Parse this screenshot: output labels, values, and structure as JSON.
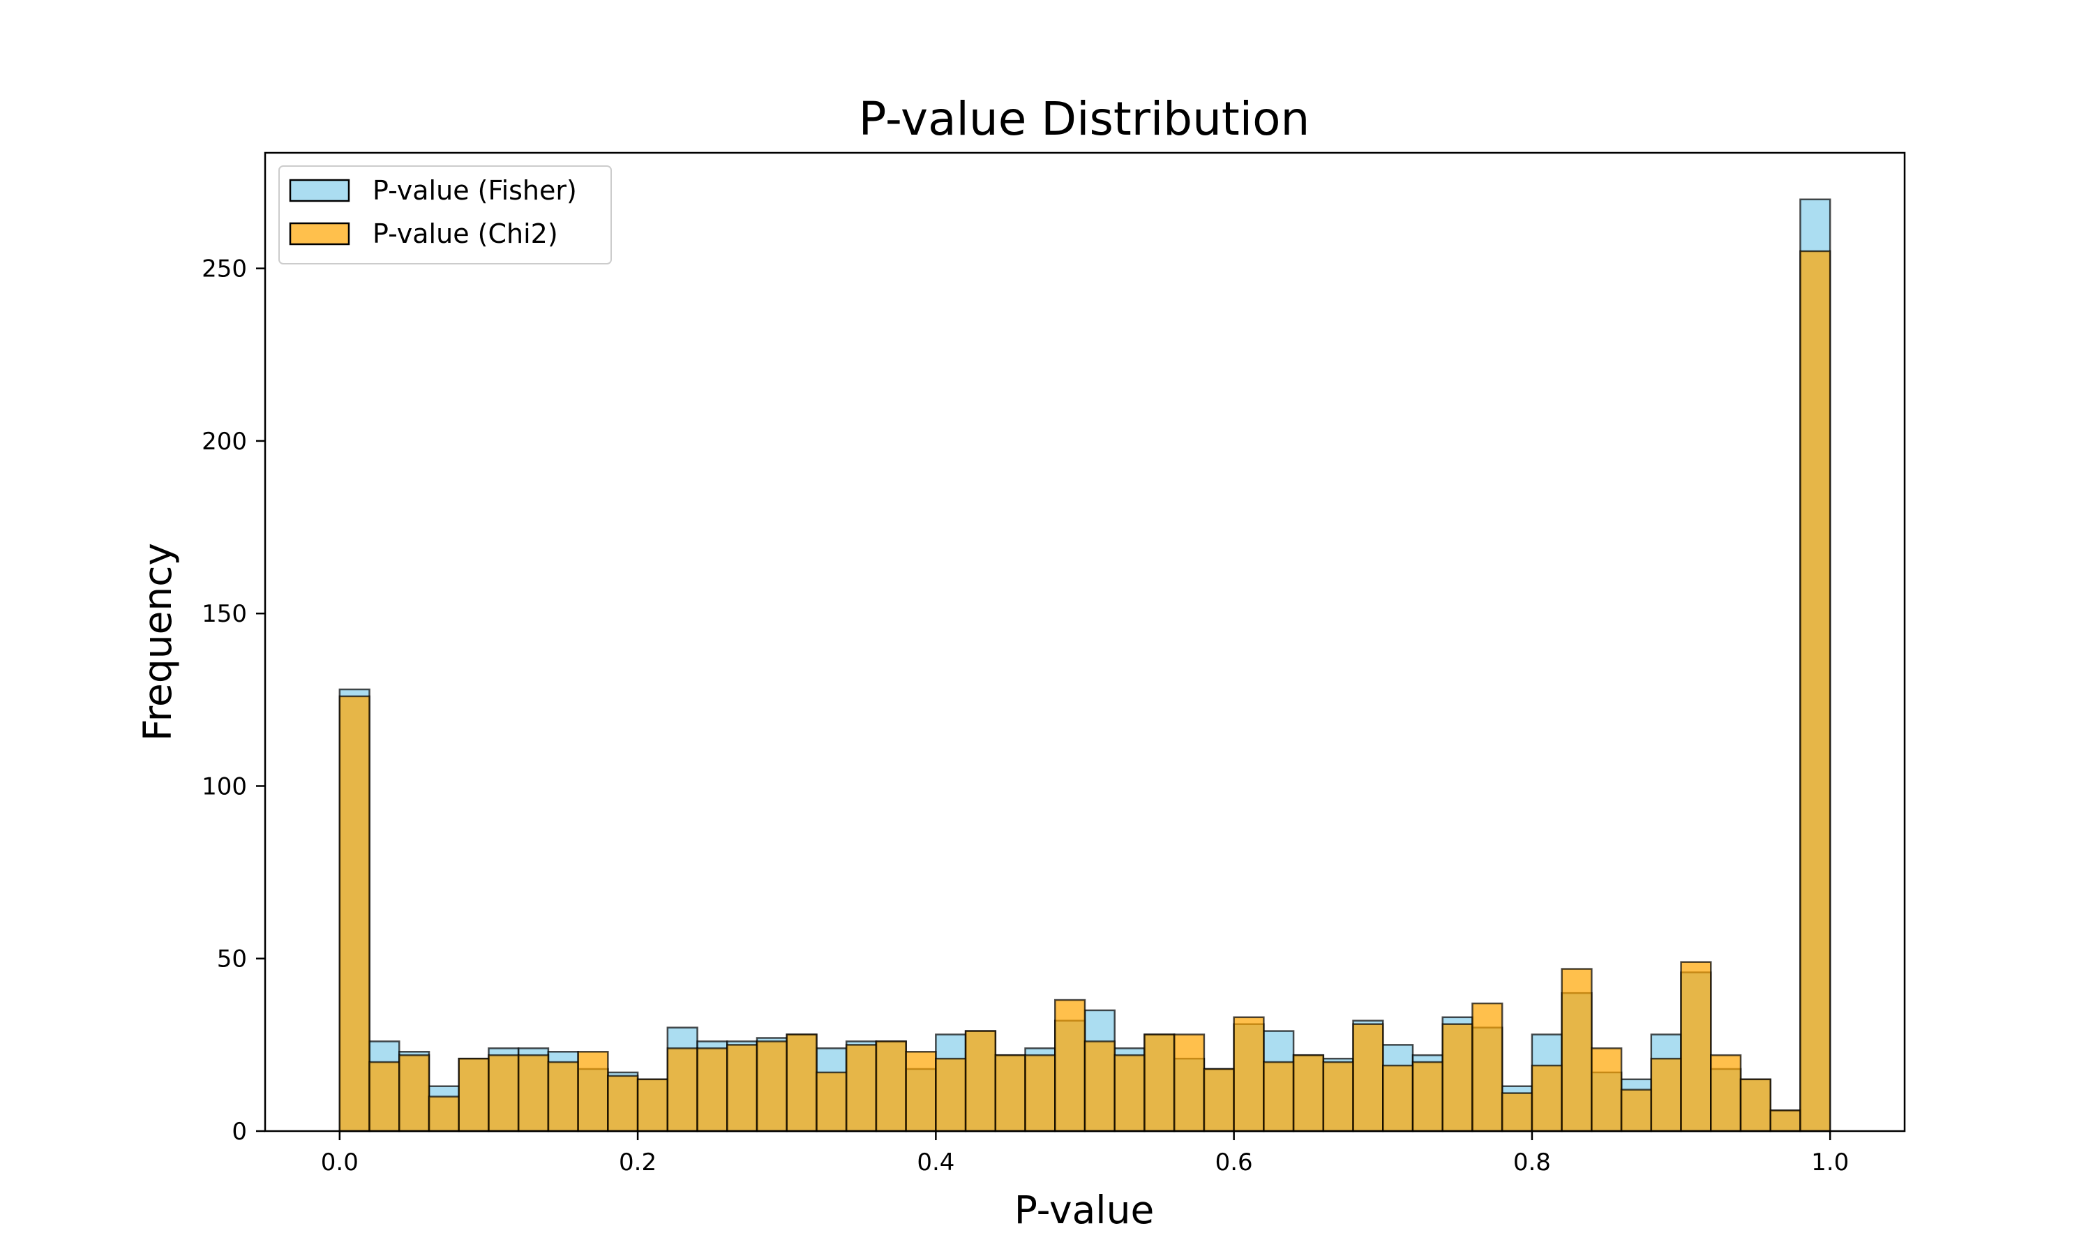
{
  "chart_data": {
    "type": "bar",
    "subtype": "overlapping-histogram",
    "title": "P-value Distribution",
    "xlabel": "P-value",
    "ylabel": "Frequency",
    "xlim": [
      -0.05,
      1.05
    ],
    "ylim": [
      0,
      283.5
    ],
    "xticks": [
      0.0,
      0.2,
      0.4,
      0.6,
      0.8,
      1.0
    ],
    "xtick_labels": [
      "0.0",
      "0.2",
      "0.4",
      "0.6",
      "0.8",
      "1.0"
    ],
    "yticks": [
      0,
      50,
      100,
      150,
      200,
      250
    ],
    "ytick_labels": [
      "0",
      "50",
      "100",
      "150",
      "200",
      "250"
    ],
    "grid": false,
    "legend_position": "upper-left",
    "bin_edges_range": [
      0.0,
      1.0
    ],
    "bins": 50,
    "series": [
      {
        "name": "P-value (Fisher)",
        "color": "#87CEEB",
        "alpha": 0.7,
        "edgecolor": "#000000",
        "values": [
          128,
          26,
          23,
          13,
          21,
          24,
          24,
          23,
          18,
          17,
          15,
          30,
          26,
          26,
          27,
          28,
          24,
          26,
          26,
          18,
          28,
          29,
          22,
          24,
          32,
          35,
          24,
          28,
          21,
          18,
          31,
          29,
          22,
          21,
          32,
          25,
          22,
          33,
          30,
          13,
          28,
          40,
          17,
          15,
          28,
          46,
          18,
          15,
          6,
          270
        ]
      },
      {
        "name": "P-value (Chi2)",
        "color": "#FFA500",
        "alpha": 0.7,
        "edgecolor": "#000000",
        "values": [
          126,
          20,
          22,
          10,
          21,
          22,
          22,
          20,
          23,
          16,
          15,
          24,
          24,
          25,
          26,
          28,
          17,
          25,
          26,
          23,
          21,
          29,
          22,
          22,
          38,
          26,
          22,
          28,
          28,
          18,
          33,
          20,
          22,
          20,
          31,
          19,
          20,
          31,
          37,
          11,
          19,
          47,
          24,
          12,
          21,
          49,
          22,
          15,
          6,
          255
        ]
      }
    ]
  }
}
